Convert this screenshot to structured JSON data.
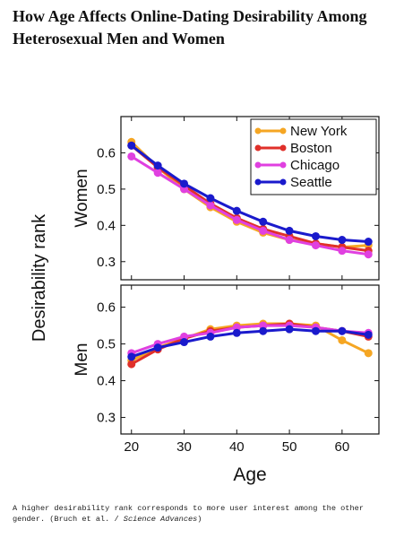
{
  "title": "How Age Affects Online-Dating Desirability Among Heterosexual Men and Women",
  "ylabel": "Desirability rank",
  "caption": {
    "text": "A higher desirability rank corresponds to more user interest among the other gender. (Bruch et al. / ",
    "source": "Science Advances",
    "end": ")"
  },
  "chart_data": [
    {
      "type": "line",
      "ylabel": "Women",
      "legend": "upper right",
      "x": [
        20,
        25,
        30,
        35,
        40,
        45,
        50,
        55,
        60,
        65
      ],
      "xlim": [
        18,
        67
      ],
      "xticks": [
        20,
        30,
        40,
        50,
        60
      ],
      "ylim": [
        0.25,
        0.7
      ],
      "yticks": [
        0.3,
        0.4,
        0.5,
        0.6
      ],
      "series": [
        {
          "name": "New York",
          "color": "#f5a623",
          "values": [
            0.63,
            0.56,
            0.5,
            0.45,
            0.41,
            0.38,
            0.36,
            0.35,
            0.34,
            0.345
          ]
        },
        {
          "name": "Boston",
          "color": "#e0302a",
          "values": [
            0.62,
            0.56,
            0.51,
            0.46,
            0.42,
            0.39,
            0.37,
            0.35,
            0.34,
            0.33
          ]
        },
        {
          "name": "Chicago",
          "color": "#e040e0",
          "values": [
            0.59,
            0.545,
            0.5,
            0.455,
            0.415,
            0.385,
            0.36,
            0.345,
            0.33,
            0.32
          ]
        },
        {
          "name": "Seattle",
          "color": "#1a1acc",
          "values": [
            0.62,
            0.565,
            0.515,
            0.475,
            0.44,
            0.41,
            0.385,
            0.37,
            0.36,
            0.355
          ]
        }
      ]
    },
    {
      "type": "line",
      "ylabel": "Men",
      "xlabel": "Age",
      "x": [
        20,
        25,
        30,
        35,
        40,
        45,
        50,
        55,
        60,
        65
      ],
      "xlim": [
        18,
        67
      ],
      "xticks": [
        20,
        30,
        40,
        50,
        60
      ],
      "ylim": [
        0.255,
        0.66
      ],
      "yticks": [
        0.3,
        0.4,
        0.5,
        0.6
      ],
      "series": [
        {
          "color": "#f5a623",
          "values": [
            0.455,
            0.49,
            0.515,
            0.54,
            0.55,
            0.555,
            0.555,
            0.55,
            0.51,
            0.475
          ]
        },
        {
          "color": "#e0302a",
          "values": [
            0.445,
            0.485,
            0.515,
            0.535,
            0.545,
            0.55,
            0.555,
            0.545,
            0.535,
            0.52
          ]
        },
        {
          "color": "#e040e0",
          "values": [
            0.475,
            0.5,
            0.52,
            0.53,
            0.545,
            0.55,
            0.55,
            0.545,
            0.535,
            0.53
          ]
        },
        {
          "color": "#1a1acc",
          "values": [
            0.465,
            0.49,
            0.505,
            0.52,
            0.53,
            0.535,
            0.54,
            0.535,
            0.535,
            0.525
          ]
        }
      ]
    }
  ]
}
